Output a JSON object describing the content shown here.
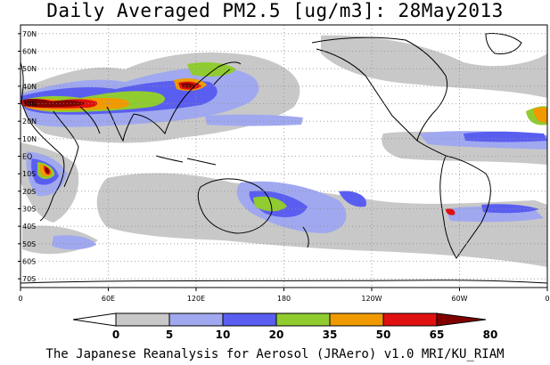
{
  "title": "Daily Averaged PM2.5 [ug/m3]: 28May2013",
  "footer": "The Japanese Reanalysis for Aerosol (JRAero) v1.0 MRI/KU_RIAM",
  "map": {
    "projection": "equirectangular, 0E to 360E",
    "lat_range": [
      -75,
      75
    ],
    "lon_range": [
      0,
      360
    ],
    "grid": "dotted",
    "lat_labels": [
      "70N",
      "60N",
      "50N",
      "40N",
      "30N",
      "20N",
      "10N",
      "EQ",
      "10S",
      "20S",
      "30S",
      "40S",
      "50S",
      "60S",
      "70S"
    ],
    "lat_values": [
      70,
      60,
      50,
      40,
      30,
      20,
      10,
      0,
      -10,
      -20,
      -30,
      -40,
      -50,
      -60,
      -70
    ],
    "lon_labels": [
      "0",
      "60E",
      "120E",
      "180",
      "120W",
      "60W",
      "0"
    ],
    "lon_values": [
      0,
      60,
      120,
      180,
      240,
      300,
      360
    ]
  },
  "colorbar": {
    "labels": [
      "0",
      "5",
      "10",
      "20",
      "35",
      "50",
      "65",
      "80"
    ],
    "colors": [
      "#ffffff",
      "#c8c8c8",
      "#a0a8f0",
      "#5a5ef0",
      "#90cc30",
      "#f09a00",
      "#e01010",
      "#800000"
    ],
    "levels": [
      0,
      5,
      10,
      20,
      35,
      50,
      65,
      80
    ]
  }
}
